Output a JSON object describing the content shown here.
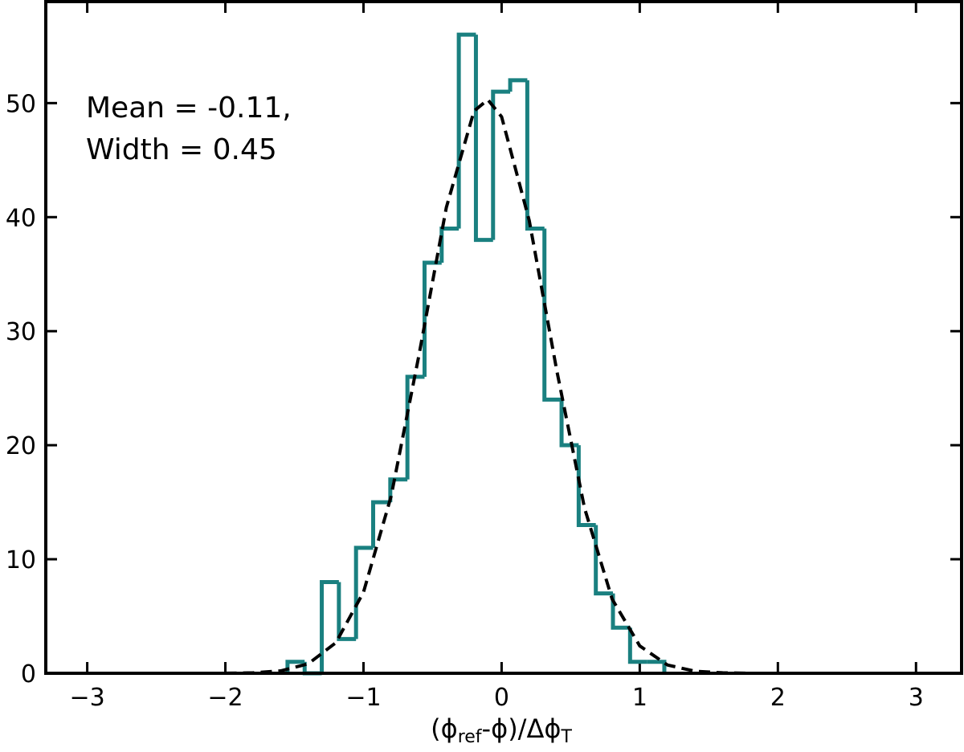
{
  "chart_data": {
    "type": "histogram",
    "bins": [
      -1.55,
      -1.426,
      -1.302,
      -1.178,
      -1.054,
      -0.93,
      -0.806,
      -0.682,
      -0.558,
      -0.434,
      -0.31,
      -0.186,
      -0.062,
      0.062,
      0.186,
      0.31,
      0.434,
      0.558,
      0.682,
      0.806,
      0.93,
      1.054,
      1.178
    ],
    "counts": [
      1,
      0,
      8,
      3,
      11,
      15,
      17,
      26,
      36,
      39,
      56,
      38,
      51,
      52,
      39,
      24,
      20,
      13,
      7,
      4,
      1,
      1
    ],
    "color": "#1a8080",
    "overlay": {
      "type": "line",
      "x": [
        -2.0,
        -1.8,
        -1.6,
        -1.4,
        -1.2,
        -1.0,
        -0.8,
        -0.6,
        -0.4,
        -0.2,
        -0.1,
        0.0,
        0.2,
        0.4,
        0.6,
        0.8,
        1.0,
        1.2,
        1.4,
        1.6,
        1.8
      ],
      "values": [
        0.007,
        0.04,
        0.21,
        0.83,
        2.68,
        7.11,
        15.52,
        27.8,
        40.86,
        49.3,
        50.3,
        48.8,
        39.7,
        26.5,
        14.5,
        6.51,
        2.4,
        0.73,
        0.18,
        0.04,
        0.006
      ],
      "color": "#000000",
      "dashed": true
    },
    "annotations": [
      "Mean = -0.11,",
      "Width = 0.45"
    ],
    "xlabel": [
      {
        "text": "(ϕ"
      },
      {
        "text": "ref",
        "sub": true
      },
      {
        "text": "-ϕ)/Δϕ"
      },
      {
        "text": "T",
        "sub": true
      }
    ],
    "xlim": [
      -3.3,
      3.33
    ],
    "ylim": [
      0,
      58.9
    ],
    "xticks": [
      {
        "value": -3,
        "label": "−3"
      },
      {
        "value": -2,
        "label": "−2"
      },
      {
        "value": -1,
        "label": "−1"
      },
      0,
      1,
      2,
      3
    ],
    "yticks": [
      0,
      10,
      20,
      30,
      40,
      50
    ],
    "tick_direction": "in"
  }
}
